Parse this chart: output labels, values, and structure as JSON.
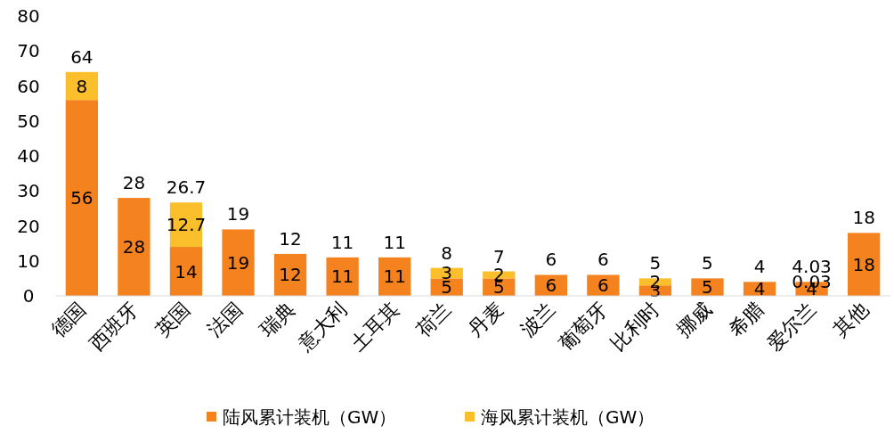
{
  "chart_data": {
    "type": "bar",
    "stacked": true,
    "categories": [
      "德国",
      "西班牙",
      "英国",
      "法国",
      "瑞典",
      "意大利",
      "土耳其",
      "荷兰",
      "丹麦",
      "波兰",
      "葡萄牙",
      "比利时",
      "挪威",
      "希腊",
      "爱尔兰",
      "其他"
    ],
    "series": [
      {
        "name": "陆风累计装机（GW）",
        "color": "#f4821f",
        "values": [
          56,
          28,
          14,
          19,
          12,
          11,
          11,
          5,
          5,
          6,
          6,
          3,
          5,
          4,
          4,
          18
        ]
      },
      {
        "name": "海风累计装机（GW）",
        "color": "#fbbf2c",
        "values": [
          8,
          null,
          12.7,
          null,
          null,
          null,
          null,
          3,
          2,
          null,
          null,
          2,
          null,
          null,
          0.03,
          null
        ]
      }
    ],
    "totals": [
      "64",
      "28",
      "26.7",
      "19",
      "12",
      "11",
      "11",
      "8",
      "7",
      "6",
      "6",
      "5",
      "5",
      "4",
      "4.03",
      "18"
    ],
    "data_labels": true,
    "ylim": [
      0,
      80
    ],
    "yticks": [
      0,
      10,
      20,
      30,
      40,
      50,
      60,
      70,
      80
    ],
    "grid": false,
    "legend": "bottom"
  }
}
